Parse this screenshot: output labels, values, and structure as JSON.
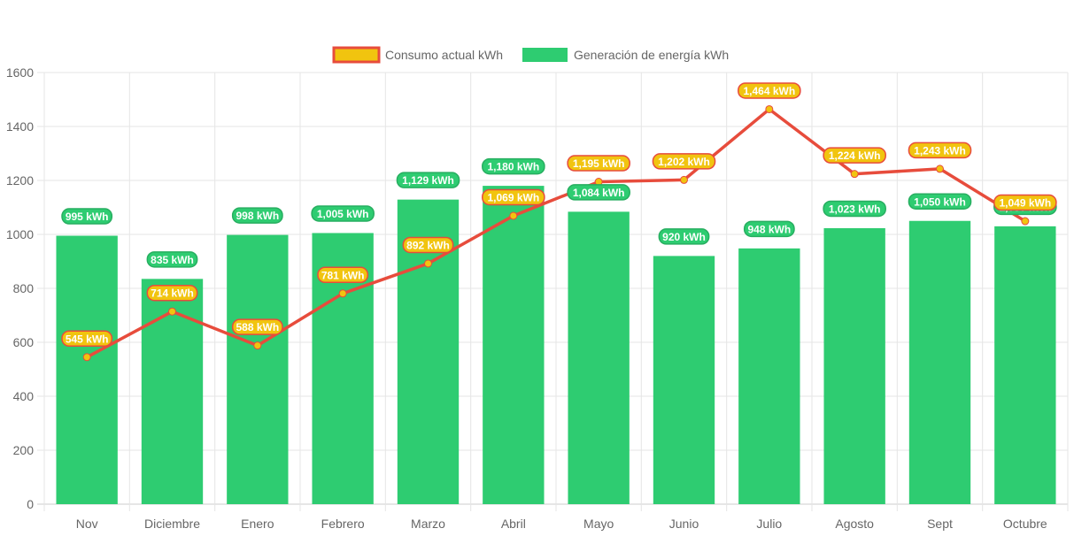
{
  "chart_data": {
    "type": "bar",
    "title": "",
    "xlabel": "",
    "ylabel": "",
    "ylim": [
      0,
      1600
    ],
    "yticks": [
      "0",
      "200",
      "400",
      "600",
      "800",
      "1000",
      "1200",
      "1400",
      "1600"
    ],
    "grid": true,
    "legend_position": "top-center",
    "categories": [
      "Nov",
      "Diciembre",
      "Enero",
      "Febrero",
      "Marzo",
      "Abril",
      "Mayo",
      "Junio",
      "Julio",
      "Agosto",
      "Sept",
      "Octubre"
    ],
    "series": [
      {
        "name": "Consumo actual kWh",
        "type": "line",
        "color": "#e74c3c",
        "point_color": "#f1c40f",
        "values": [
          545,
          714,
          588,
          781,
          892,
          1069,
          1195,
          1202,
          1464,
          1224,
          1243,
          1049
        ],
        "labels": [
          "545 kWh",
          "714 kWh",
          "588 kWh",
          "781 kWh",
          "892 kWh",
          "1,069 kWh",
          "1,195 kWh",
          "1,202 kWh",
          "1,464 kWh",
          "1,224 kWh",
          "1,243 kWh",
          "1,049 kWh"
        ]
      },
      {
        "name": "Generación de energía kWh",
        "type": "bar",
        "color": "#2ecc71",
        "values": [
          995,
          835,
          998,
          1005,
          1129,
          1180,
          1084,
          920,
          948,
          1023,
          1050,
          1030
        ],
        "labels": [
          "995 kWh",
          "835 kWh",
          "998 kWh",
          "1,005 kWh",
          "1,129 kWh",
          "1,180 kWh",
          "1,084 kWh",
          "920 kWh",
          "948 kWh",
          "1,023 kWh",
          "1,050 kWh",
          "1,030 kWh"
        ]
      }
    ]
  }
}
